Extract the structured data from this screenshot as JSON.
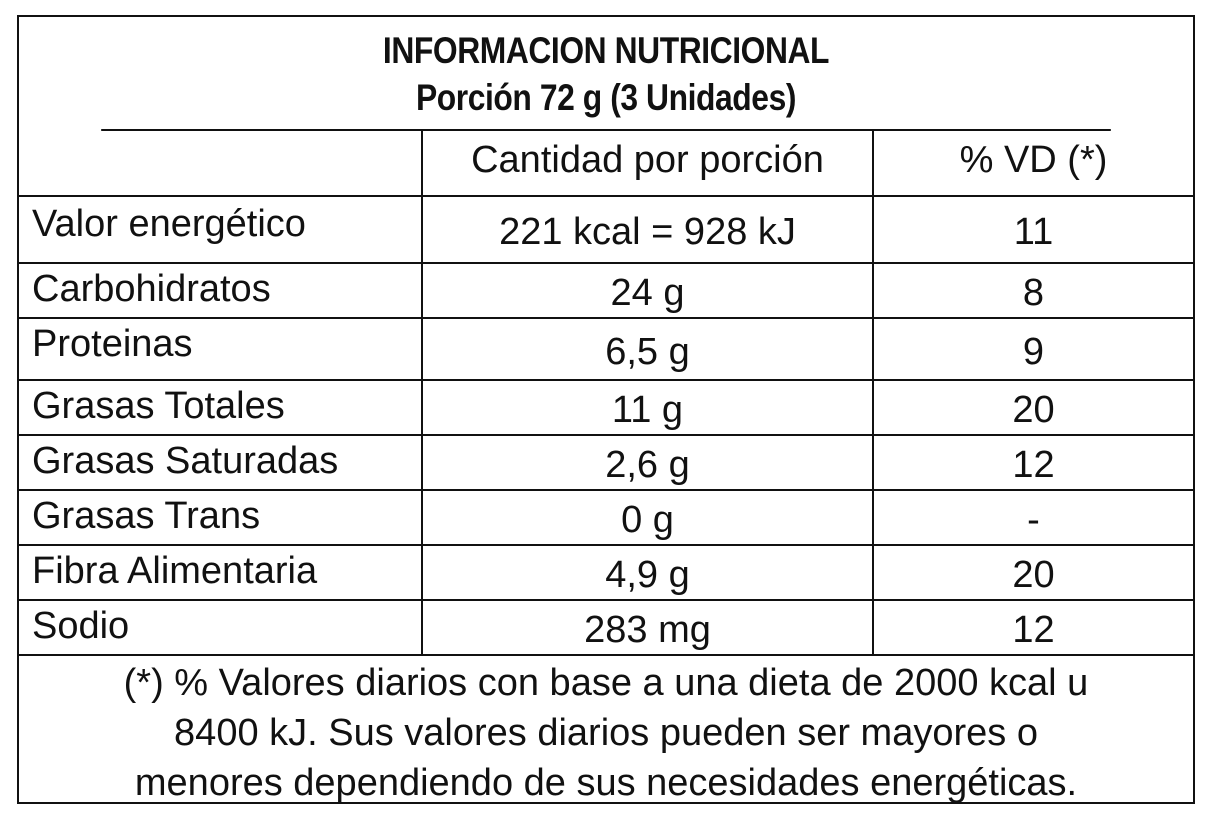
{
  "header": {
    "title": "INFORMACION NUTRICIONAL",
    "serving": "Porción 72 g (3 Unidades)"
  },
  "columns": {
    "nutrient": "",
    "amount": "Cantidad por porción",
    "dv": "% VD (*)"
  },
  "rows": [
    {
      "nutrient": "Valor energético",
      "amount": "221 kcal = 928 kJ",
      "dv": "11"
    },
    {
      "nutrient": "Carbohidratos",
      "amount": "24 g",
      "dv": "8"
    },
    {
      "nutrient": "Proteinas",
      "amount": "6,5 g",
      "dv": "9"
    },
    {
      "nutrient": "Grasas Totales",
      "amount": "11 g",
      "dv": "20"
    },
    {
      "nutrient": "Grasas Saturadas",
      "amount": "2,6 g",
      "dv": "12"
    },
    {
      "nutrient": "Grasas Trans",
      "amount": "0 g",
      "dv": "-"
    },
    {
      "nutrient": "Fibra Alimentaria",
      "amount": "4,9 g",
      "dv": "20"
    },
    {
      "nutrient": "Sodio",
      "amount": "283 mg",
      "dv": "12"
    }
  ],
  "footnote": {
    "line1": "(*) % Valores diarios con base a una dieta de 2000 kcal u",
    "line2": "8400 kJ. Sus valores diarios pueden ser mayores o",
    "line3": "menores dependiendo de sus necesidades energéticas."
  }
}
